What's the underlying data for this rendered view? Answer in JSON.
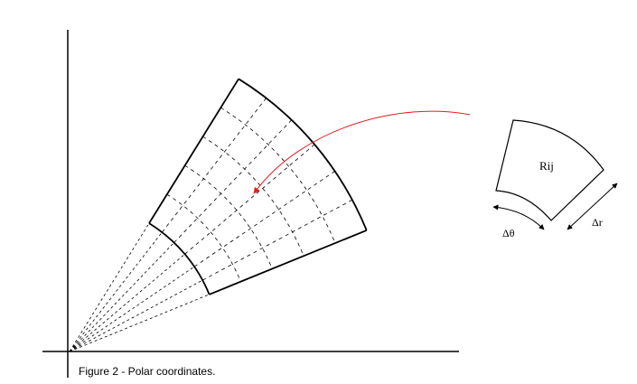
{
  "caption": "Figure 2 - Polar coordinates.",
  "labels": {
    "cell": "Rij",
    "delta_theta": "Δθ",
    "delta_r": "Δr"
  },
  "colors": {
    "lines": "#000000",
    "arrow": "#e02020"
  }
}
